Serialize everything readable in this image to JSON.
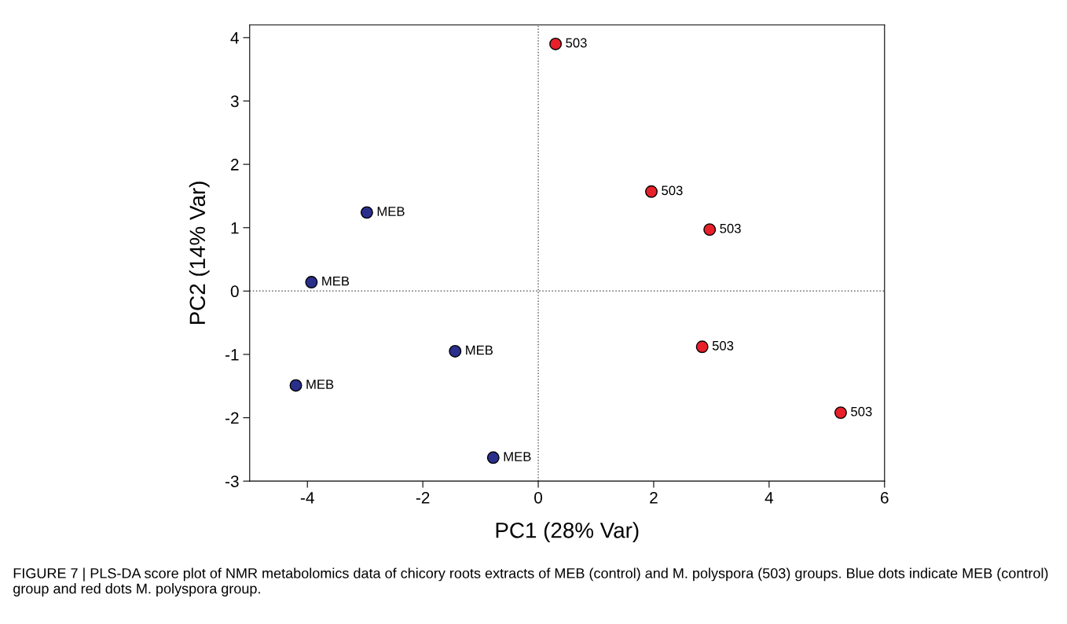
{
  "chart_data": {
    "type": "scatter",
    "xlabel": "PC1 (28% Var)",
    "ylabel": "PC2 (14% Var)",
    "series": [
      {
        "color": "#2a2f8c",
        "x": [
          -2.97,
          -3.93,
          -1.44,
          -4.2,
          -0.78
        ],
        "values": [
          1.24,
          0.14,
          -0.95,
          -1.49,
          -2.63
        ]
      },
      {
        "color": "#e8202a",
        "x": [
          0.3,
          1.96,
          2.97,
          2.84,
          5.24
        ],
        "values": [
          3.9,
          1.57,
          0.97,
          -0.88,
          -1.92
        ]
      }
    ],
    "xlim": [
      -5,
      6
    ],
    "xticks": [
      {
        "value": -4,
        "label": "-4"
      },
      {
        "value": -2,
        "label": "-2"
      },
      0,
      2,
      4,
      6
    ],
    "ylim": [
      -3,
      4.2
    ],
    "yticks": [
      {
        "value": -3,
        "label": "-3"
      },
      {
        "value": -2,
        "label": "-2"
      },
      {
        "value": -1,
        "label": "-1"
      },
      0,
      1,
      2,
      3,
      4
    ],
    "marker": "circle",
    "grid": false,
    "legend": false,
    "ref_lines": [
      {
        "axis": "x",
        "value": 0,
        "line_style": "dotted",
        "color": "#555555"
      },
      {
        "axis": "y",
        "value": 0,
        "line_style": "dotted",
        "color": "#666666"
      }
    ],
    "annotations": [
      {
        "text": "MEB",
        "x": -2.97,
        "y": 1.24
      },
      {
        "text": "MEB",
        "x": -3.93,
        "y": 0.14
      },
      {
        "text": "MEB",
        "x": -1.44,
        "y": -0.95
      },
      {
        "text": "MEB",
        "x": -4.2,
        "y": -1.49
      },
      {
        "text": "MEB",
        "x": -0.78,
        "y": -2.63
      },
      {
        "text": "503",
        "x": 0.3,
        "y": 3.9
      },
      {
        "text": "503",
        "x": 1.96,
        "y": 1.57
      },
      {
        "text": "503",
        "x": 2.97,
        "y": 0.97
      },
      {
        "text": "503",
        "x": 2.84,
        "y": -0.88
      },
      {
        "text": "503",
        "x": 5.24,
        "y": -1.92
      },
      "FIGURE 7 | PLS-DA score plot of NMR metabolomics data of chicory roots extracts of MEB (control) and M. polyspora (503) groups. Blue dots indicate MEB (control) group and red dots M. polyspora group."
    ]
  }
}
